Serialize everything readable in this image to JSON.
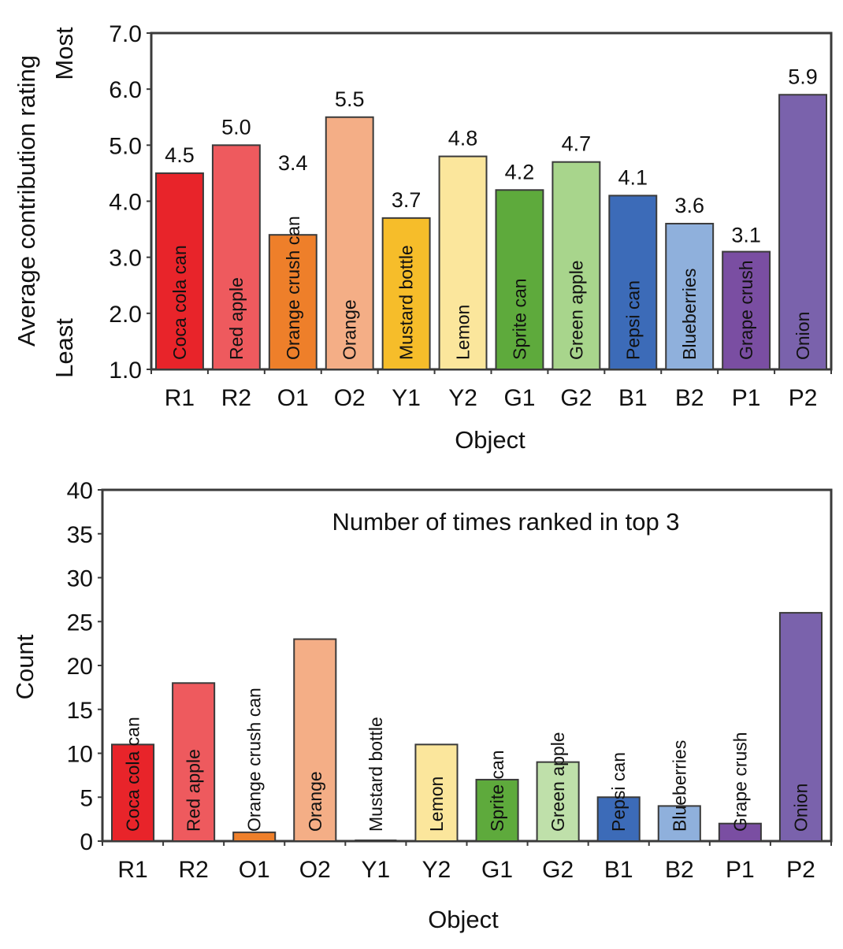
{
  "chart_data": [
    {
      "type": "bar",
      "title": "",
      "xlabel": "Object",
      "ylabel": "Average contribution rating",
      "y_end_labels": {
        "top": "Most",
        "bottom": "Least"
      },
      "categories": [
        "R1",
        "R2",
        "O1",
        "O2",
        "Y1",
        "Y2",
        "G1",
        "G2",
        "B1",
        "B2",
        "P1",
        "P2"
      ],
      "bar_labels": [
        "Coca cola can",
        "Red apple",
        "Orange crush can",
        "Orange",
        "Mustard bottle",
        "Lemon",
        "Sprite can",
        "Green apple",
        "Pepsi can",
        "Blueberries",
        "Grape crush",
        "Onion"
      ],
      "values": [
        4.5,
        5.0,
        3.4,
        5.5,
        3.7,
        4.8,
        4.2,
        4.7,
        4.1,
        3.6,
        3.1,
        5.9
      ],
      "value_labels": [
        "4.5",
        "5.0",
        "3.4",
        "5.5",
        "3.7",
        "4.8",
        "4.2",
        "4.7",
        "4.1",
        "3.6",
        "3.1",
        "5.9"
      ],
      "colors": [
        "#e8242a",
        "#ee5a5e",
        "#ee7f2a",
        "#f4ae86",
        "#f6bd2a",
        "#fbe69c",
        "#5eaa3c",
        "#a8d58c",
        "#3c6bb8",
        "#8fb0dc",
        "#7a4ea2",
        "#7a62ac"
      ],
      "ylim": [
        1.0,
        7.0
      ],
      "yticks": [
        "1.0",
        "2.0",
        "3.0",
        "4.0",
        "5.0",
        "6.0",
        "7.0"
      ],
      "grid": false
    },
    {
      "type": "bar",
      "title": "Number of times ranked in top 3",
      "xlabel": "Object",
      "ylabel": "Count",
      "categories": [
        "R1",
        "R2",
        "O1",
        "O2",
        "Y1",
        "Y2",
        "G1",
        "G2",
        "B1",
        "B2",
        "P1",
        "P2"
      ],
      "bar_labels": [
        "Coca cola can",
        "Red apple",
        "Orange crush can",
        "Orange",
        "Mustard bottle",
        "Lemon",
        "Sprite can",
        "Green apple",
        "Pepsi can",
        "Blueberries",
        "Grape crush",
        "Onion"
      ],
      "values": [
        11,
        18,
        1,
        23,
        0,
        11,
        7,
        9,
        5,
        4,
        2,
        26
      ],
      "colors": [
        "#e8242a",
        "#ee5a5e",
        "#ee7f2a",
        "#f4ae86",
        "#f6bd2a",
        "#fbe69c",
        "#5eaa3c",
        "#bfe0aa",
        "#3c6bb8",
        "#8fb0dc",
        "#7a4ea2",
        "#7a62ac"
      ],
      "ylim": [
        0,
        40
      ],
      "yticks": [
        "0",
        "5",
        "10",
        "15",
        "20",
        "25",
        "30",
        "35",
        "40"
      ],
      "grid": false
    }
  ]
}
